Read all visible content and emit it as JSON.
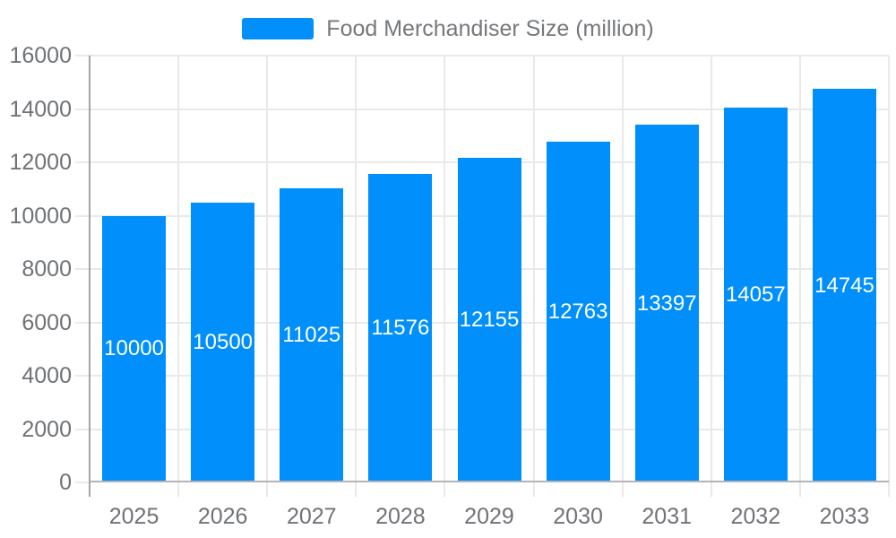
{
  "legend": {
    "label": "Food Merchandiser Size (million)",
    "swatch_color": "#008FFB"
  },
  "chart_data": {
    "type": "bar",
    "title": "Food Merchandiser Size (million)",
    "series": [
      {
        "name": "Food Merchandiser Size (million)",
        "values": [
          10000,
          10500,
          11025,
          11576,
          12155,
          12763,
          13397,
          14057,
          14745
        ]
      }
    ],
    "categories": [
      "2025",
      "2026",
      "2027",
      "2028",
      "2029",
      "2030",
      "2031",
      "2032",
      "2033"
    ],
    "data_labels": [
      "10000",
      "10500",
      "11025",
      "11576",
      "12155",
      "12763",
      "13397",
      "14057",
      "14745"
    ],
    "xlabel": "",
    "ylabel": "",
    "ylim": [
      0,
      16000
    ],
    "yticks": [
      0,
      2000,
      4000,
      6000,
      8000,
      10000,
      12000,
      14000,
      16000
    ],
    "grid": true,
    "legend_position": "top",
    "colors": {
      "bar": "#008FFB",
      "bar_label_text": "#ffffff",
      "grid_line": "#e9e9e9",
      "y_axis_line": "#a4a4a8",
      "x_axis_line": "#b4b4b8",
      "tick_label_text": "#6f7276",
      "legend_text": "#75787c",
      "background": "#ffffff"
    }
  }
}
